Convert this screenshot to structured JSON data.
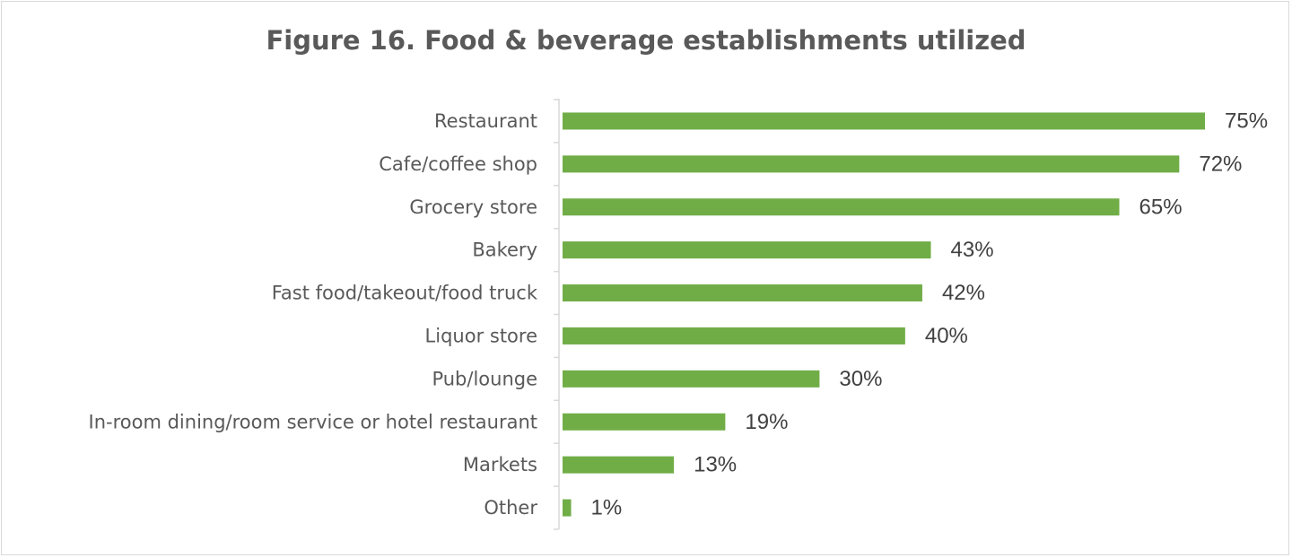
{
  "chart_data": {
    "type": "bar",
    "orientation": "horizontal",
    "title": "Figure 16. Food & beverage establishments utilized",
    "categories": [
      "Restaurant",
      "Cafe/coffee shop",
      "Grocery store",
      "Bakery",
      "Fast food/takeout/food truck",
      "Liquor store",
      "Pub/lounge",
      "In-room dining/room service or hotel restaurant",
      "Markets",
      "Other"
    ],
    "values": [
      75,
      72,
      65,
      43,
      42,
      40,
      30,
      19,
      13,
      1
    ],
    "value_labels": [
      "75%",
      "72%",
      "65%",
      "43%",
      "42%",
      "40%",
      "30%",
      "19%",
      "13%",
      "1%"
    ],
    "unit": "%",
    "xlim": [
      0,
      75
    ],
    "grid": false,
    "legend": "none",
    "bar_color": "#70AD47"
  }
}
